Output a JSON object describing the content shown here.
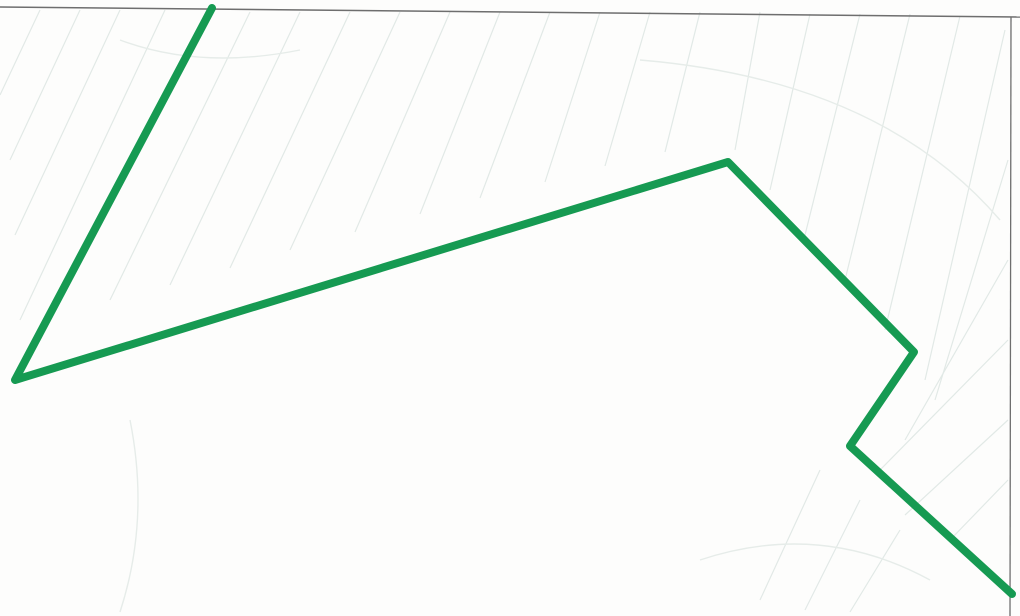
{
  "drawing": {
    "route_color": "#169a52",
    "hatch_color": "#dfe7e4",
    "border_color": "#6e6e6e",
    "background_color": "#fdfdfc"
  }
}
